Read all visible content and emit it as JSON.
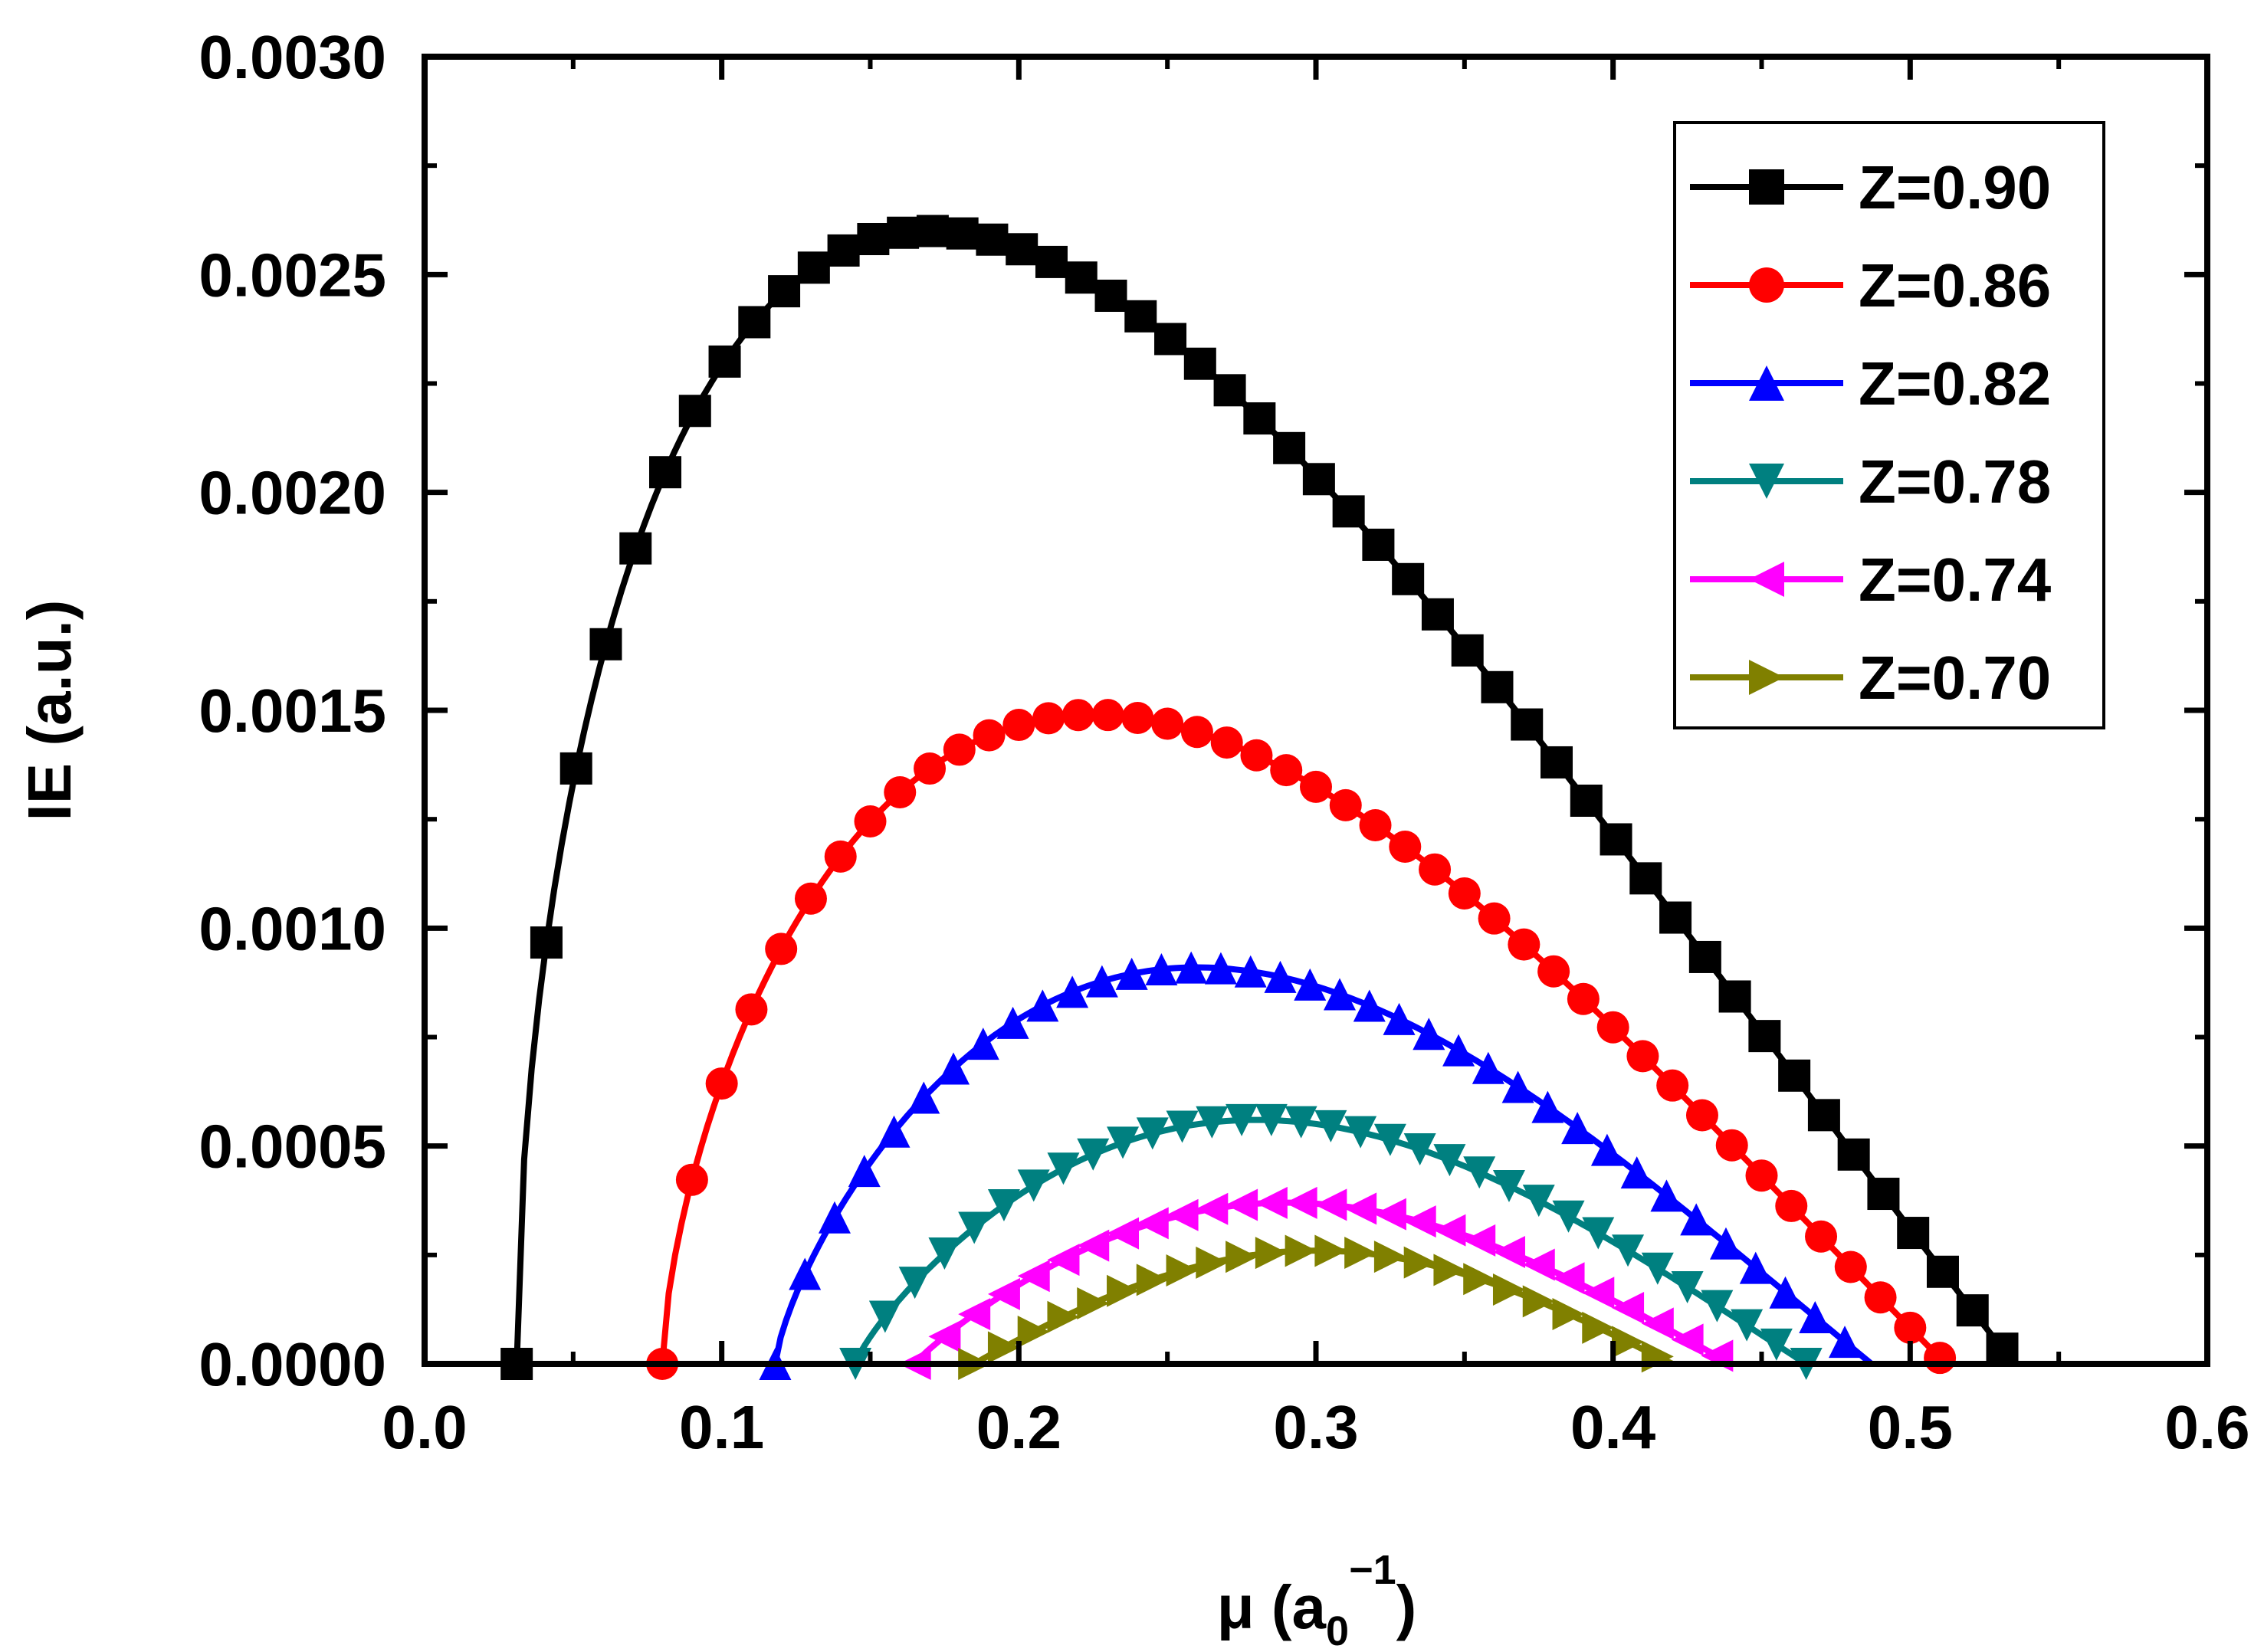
{
  "chart_data": {
    "type": "line",
    "title": "",
    "xlabel": "μ (a₀⁻¹)",
    "xlabel_main": "μ (a",
    "xlabel_sub": "0",
    "xlabel_sup": "−1",
    "xlabel_close": ")",
    "ylabel": "IE (a.u.)",
    "xlim": [
      0.0,
      0.6
    ],
    "ylim": [
      0.0,
      0.003
    ],
    "x_ticks": [
      "0.0",
      "0.1",
      "0.2",
      "0.3",
      "0.4",
      "0.5",
      "0.6"
    ],
    "y_ticks": [
      "0.0000",
      "0.0005",
      "0.0010",
      "0.0015",
      "0.0020",
      "0.0025",
      "0.0030"
    ],
    "grid": false,
    "legend_position": "top-right",
    "series": [
      {
        "name": "Z=0.90",
        "color": "#000000",
        "marker": "square",
        "mu0": 0.031,
        "mu1": 0.535,
        "peak_x": 0.17,
        "peak_y": 0.0026
      },
      {
        "name": "Z=0.86",
        "color": "#ff0000",
        "marker": "circle",
        "mu0": 0.08,
        "mu1": 0.512,
        "peak_x": 0.225,
        "peak_y": 0.00149
      },
      {
        "name": "Z=0.82",
        "color": "#0000ff",
        "marker": "triangle-up",
        "mu0": 0.118,
        "mu1": 0.487,
        "peak_x": 0.26,
        "peak_y": 0.00091
      },
      {
        "name": "Z=0.78",
        "color": "#008080",
        "marker": "triangle-down",
        "mu0": 0.145,
        "mu1": 0.465,
        "peak_x": 0.28,
        "peak_y": 0.00056
      },
      {
        "name": "Z=0.74",
        "color": "#ff00ff",
        "marker": "triangle-left",
        "mu0": 0.165,
        "mu1": 0.44,
        "peak_x": 0.29,
        "peak_y": 0.00037
      },
      {
        "name": "Z=0.70",
        "color": "#808000",
        "marker": "triangle-right",
        "mu0": 0.185,
        "mu1": 0.42,
        "peak_x": 0.3,
        "peak_y": 0.00026
      }
    ]
  }
}
